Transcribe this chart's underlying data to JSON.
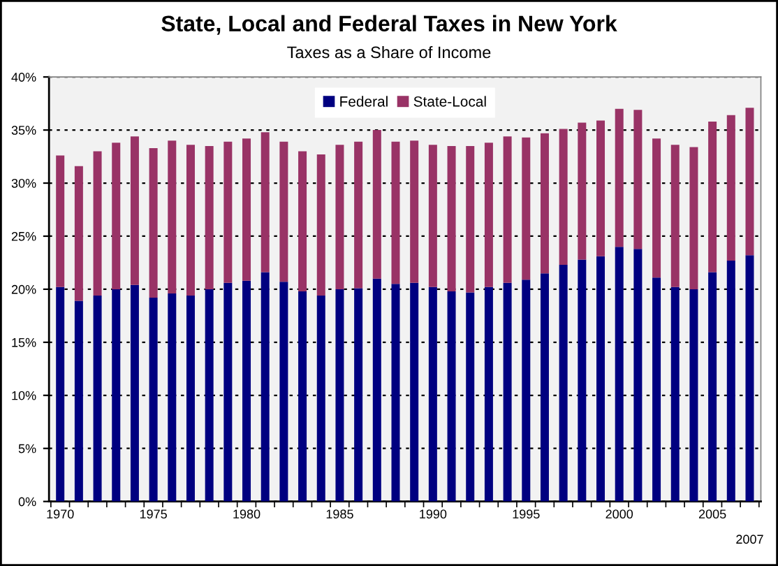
{
  "chart_data": {
    "type": "bar",
    "title": "State, Local and Federal Taxes in New York",
    "subtitle": "Taxes as a Share of Income",
    "categories": [
      "1970",
      null,
      null,
      null,
      null,
      "1975",
      null,
      null,
      null,
      null,
      "1980",
      null,
      null,
      null,
      null,
      "1985",
      null,
      null,
      null,
      null,
      "1990",
      null,
      null,
      null,
      null,
      "1995",
      null,
      null,
      null,
      null,
      "2000",
      null,
      null,
      null,
      null,
      "2005",
      null,
      "2007"
    ],
    "stacked": true,
    "series": [
      {
        "name": "Federal",
        "color": "#000080",
        "values": [
          20.2,
          18.9,
          19.4,
          20.0,
          20.4,
          19.2,
          19.6,
          19.4,
          20.0,
          20.6,
          20.8,
          21.6,
          20.7,
          19.8,
          19.4,
          20.0,
          20.1,
          21.0,
          20.5,
          20.6,
          20.2,
          19.8,
          19.7,
          20.2,
          20.6,
          20.9,
          21.5,
          22.3,
          22.8,
          23.1,
          24.0,
          23.8,
          21.1,
          20.2,
          20.0,
          21.6,
          22.7,
          23.2
        ]
      },
      {
        "name": "State-Local",
        "color": "#993366",
        "values": [
          12.4,
          12.7,
          13.6,
          13.8,
          14.0,
          14.1,
          14.4,
          14.2,
          13.5,
          13.3,
          13.4,
          13.2,
          13.2,
          13.2,
          13.3,
          13.6,
          13.8,
          14.0,
          13.4,
          13.4,
          13.4,
          13.7,
          13.8,
          13.6,
          13.8,
          13.4,
          13.2,
          12.8,
          12.9,
          12.8,
          13.0,
          13.1,
          13.1,
          13.4,
          13.4,
          14.2,
          13.7,
          13.9
        ]
      }
    ],
    "ylim": [
      0,
      40
    ],
    "yticks": [
      {
        "value": 0,
        "label": "0%"
      },
      {
        "value": 5,
        "label": "5%"
      },
      {
        "value": 10,
        "label": "10%"
      },
      {
        "value": 15,
        "label": "15%"
      },
      {
        "value": 20,
        "label": "20%"
      },
      {
        "value": 25,
        "label": "25%"
      },
      {
        "value": 30,
        "label": "30%"
      },
      {
        "value": 35,
        "label": "35%"
      },
      {
        "value": 40,
        "label": "40%"
      }
    ],
    "grid": "y",
    "legend": "top"
  }
}
